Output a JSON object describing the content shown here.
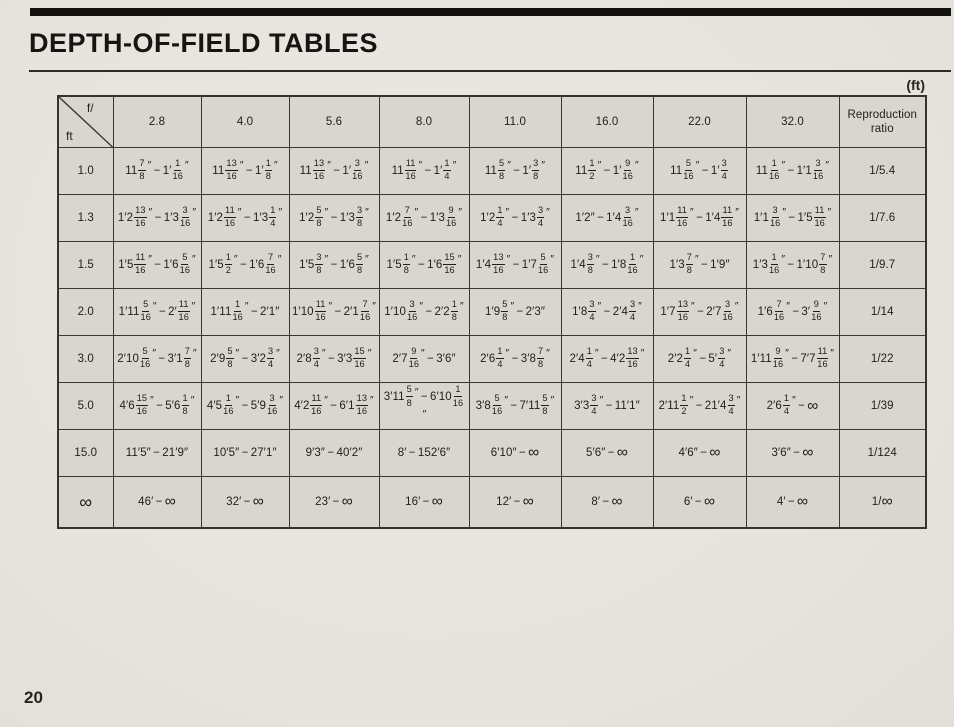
{
  "page": {
    "title": "DEPTH-OF-FIELD TABLES",
    "unit_label": "(ft)",
    "page_number": "20"
  },
  "table": {
    "corner": {
      "top": "f/",
      "bottom": "ft"
    },
    "columns": [
      "2.8",
      "4.0",
      "5.6",
      "8.0",
      "11.0",
      "16.0",
      "22.0",
      "32.0",
      "Reproduction ratio"
    ],
    "rows": [
      {
        "distance": "1.0",
        "cells": [
          "11{7/8}″ − 1′{1/16}″",
          "11{13/16}″ − 1′{1/8}″",
          "11{13/16}″ − 1′{3/16}″",
          "11{11/16}″ − 1′{1/4}″",
          "11{5/8}″ − 1′{3/8}″",
          "11{1/2}″ − 1′{9/16}″",
          "11{5/16}″ − 1′{3/4}",
          "11{1/16}″ − 1′1{3/16}″",
          "1/5.4"
        ]
      },
      {
        "distance": "1.3",
        "cells": [
          "1′2{13/16}″ − 1′3{3/16}″",
          "1′2{11/16}″ − 1′3{1/4}″",
          "1′2{5/8}″ − 1′3{3/8}″",
          "1′2{7/16}″ − 1′3{9/16}″",
          "1′2{1/4}″ − 1′3{3/4}″",
          "1′2″ − 1′4{3/16}″",
          "1′1{11/16}″ − 1′4{11/16}″",
          "1′1{3/16}″ − 1′5{11/16}″",
          "1/7.6"
        ]
      },
      {
        "distance": "1.5",
        "cells": [
          "1′5{11/16}″ − 1′6{5/16}″",
          "1′5{1/2}″ − 1′6{7/16}″",
          "1′5{3/8}″ − 1′6{5/8}″",
          "1′5{1/8}″ − 1′6{15/16}″",
          "1′4{13/16}″ − 1′7{5/16}″",
          "1′4{3/8}″ − 1′8{1/16}″",
          "1′3{7/8}″ − 1′9″",
          "1′3{1/16}″ − 1′10{7/8}″",
          "1/9.7"
        ]
      },
      {
        "distance": "2.0",
        "cells": [
          "1′11{5/16}″ − 2′{11/16}″",
          "1′11{1/16}″ − 2′1″",
          "1′10{11/16}″ − 2′1{7/16}″",
          "1′10{3/16}″ − 2′2{1/8}″",
          "1′9{5/8}″ − 2′3″",
          "1′8{3/4}″ − 2′4{3/4}″",
          "1′7{13/16}″ − 2′7{3/16}″",
          "1′6{7/16}″ − 3′{9/16}″",
          "1/14"
        ]
      },
      {
        "distance": "3.0",
        "cells": [
          "2′10{5/16}″ − 3′1{7/8}″",
          "2′9{5/8}″ − 3′2{3/4}″",
          "2′8{3/4}″ − 3′3{15/16}″",
          "2′7{9/16}″ − 3′6″",
          "2′6{1/4}″ − 3′8{7/8}″",
          "2′4{1/4}″ − 4′2{13/16}″",
          "2′2{1/4}″ − 5′{3/4}″",
          "1′11{9/16}″ − 7′7{11/16}″",
          "1/22"
        ]
      },
      {
        "distance": "5.0",
        "cells": [
          "4′6{15/16}″ − 5′6{1/8}″",
          "4′5{1/16}″ − 5′9{3/16}″",
          "4′2{11/16}″ − 6′1{13/16}″",
          "3′11{5/8}″ − 6′10{1/16}″",
          "3′8{5/16}″ − 7′11{5/8}″",
          "3′3{3/4}″ − 11′1″",
          "2′11{1/2}″ − 21′4{3/4}″",
          "2′6{1/4}″ − ∞",
          "1/39"
        ]
      },
      {
        "distance": "15.0",
        "cells": [
          "11′5″ − 21′9″",
          "10′5″ − 27′1″",
          "9′3″ − 40′2″",
          "8′ − 152′6″",
          "6′10″ − ∞",
          "5′6″ − ∞",
          "4′6″ − ∞",
          "3′6″ − ∞",
          "1/124"
        ]
      },
      {
        "distance": "∞",
        "cells": [
          "46′ − ∞",
          "32′ − ∞",
          "23′ − ∞",
          "16′ − ∞",
          "12′ − ∞",
          "8′ − ∞",
          "6′ − ∞",
          "4′ − ∞",
          "1/∞"
        ]
      }
    ]
  }
}
